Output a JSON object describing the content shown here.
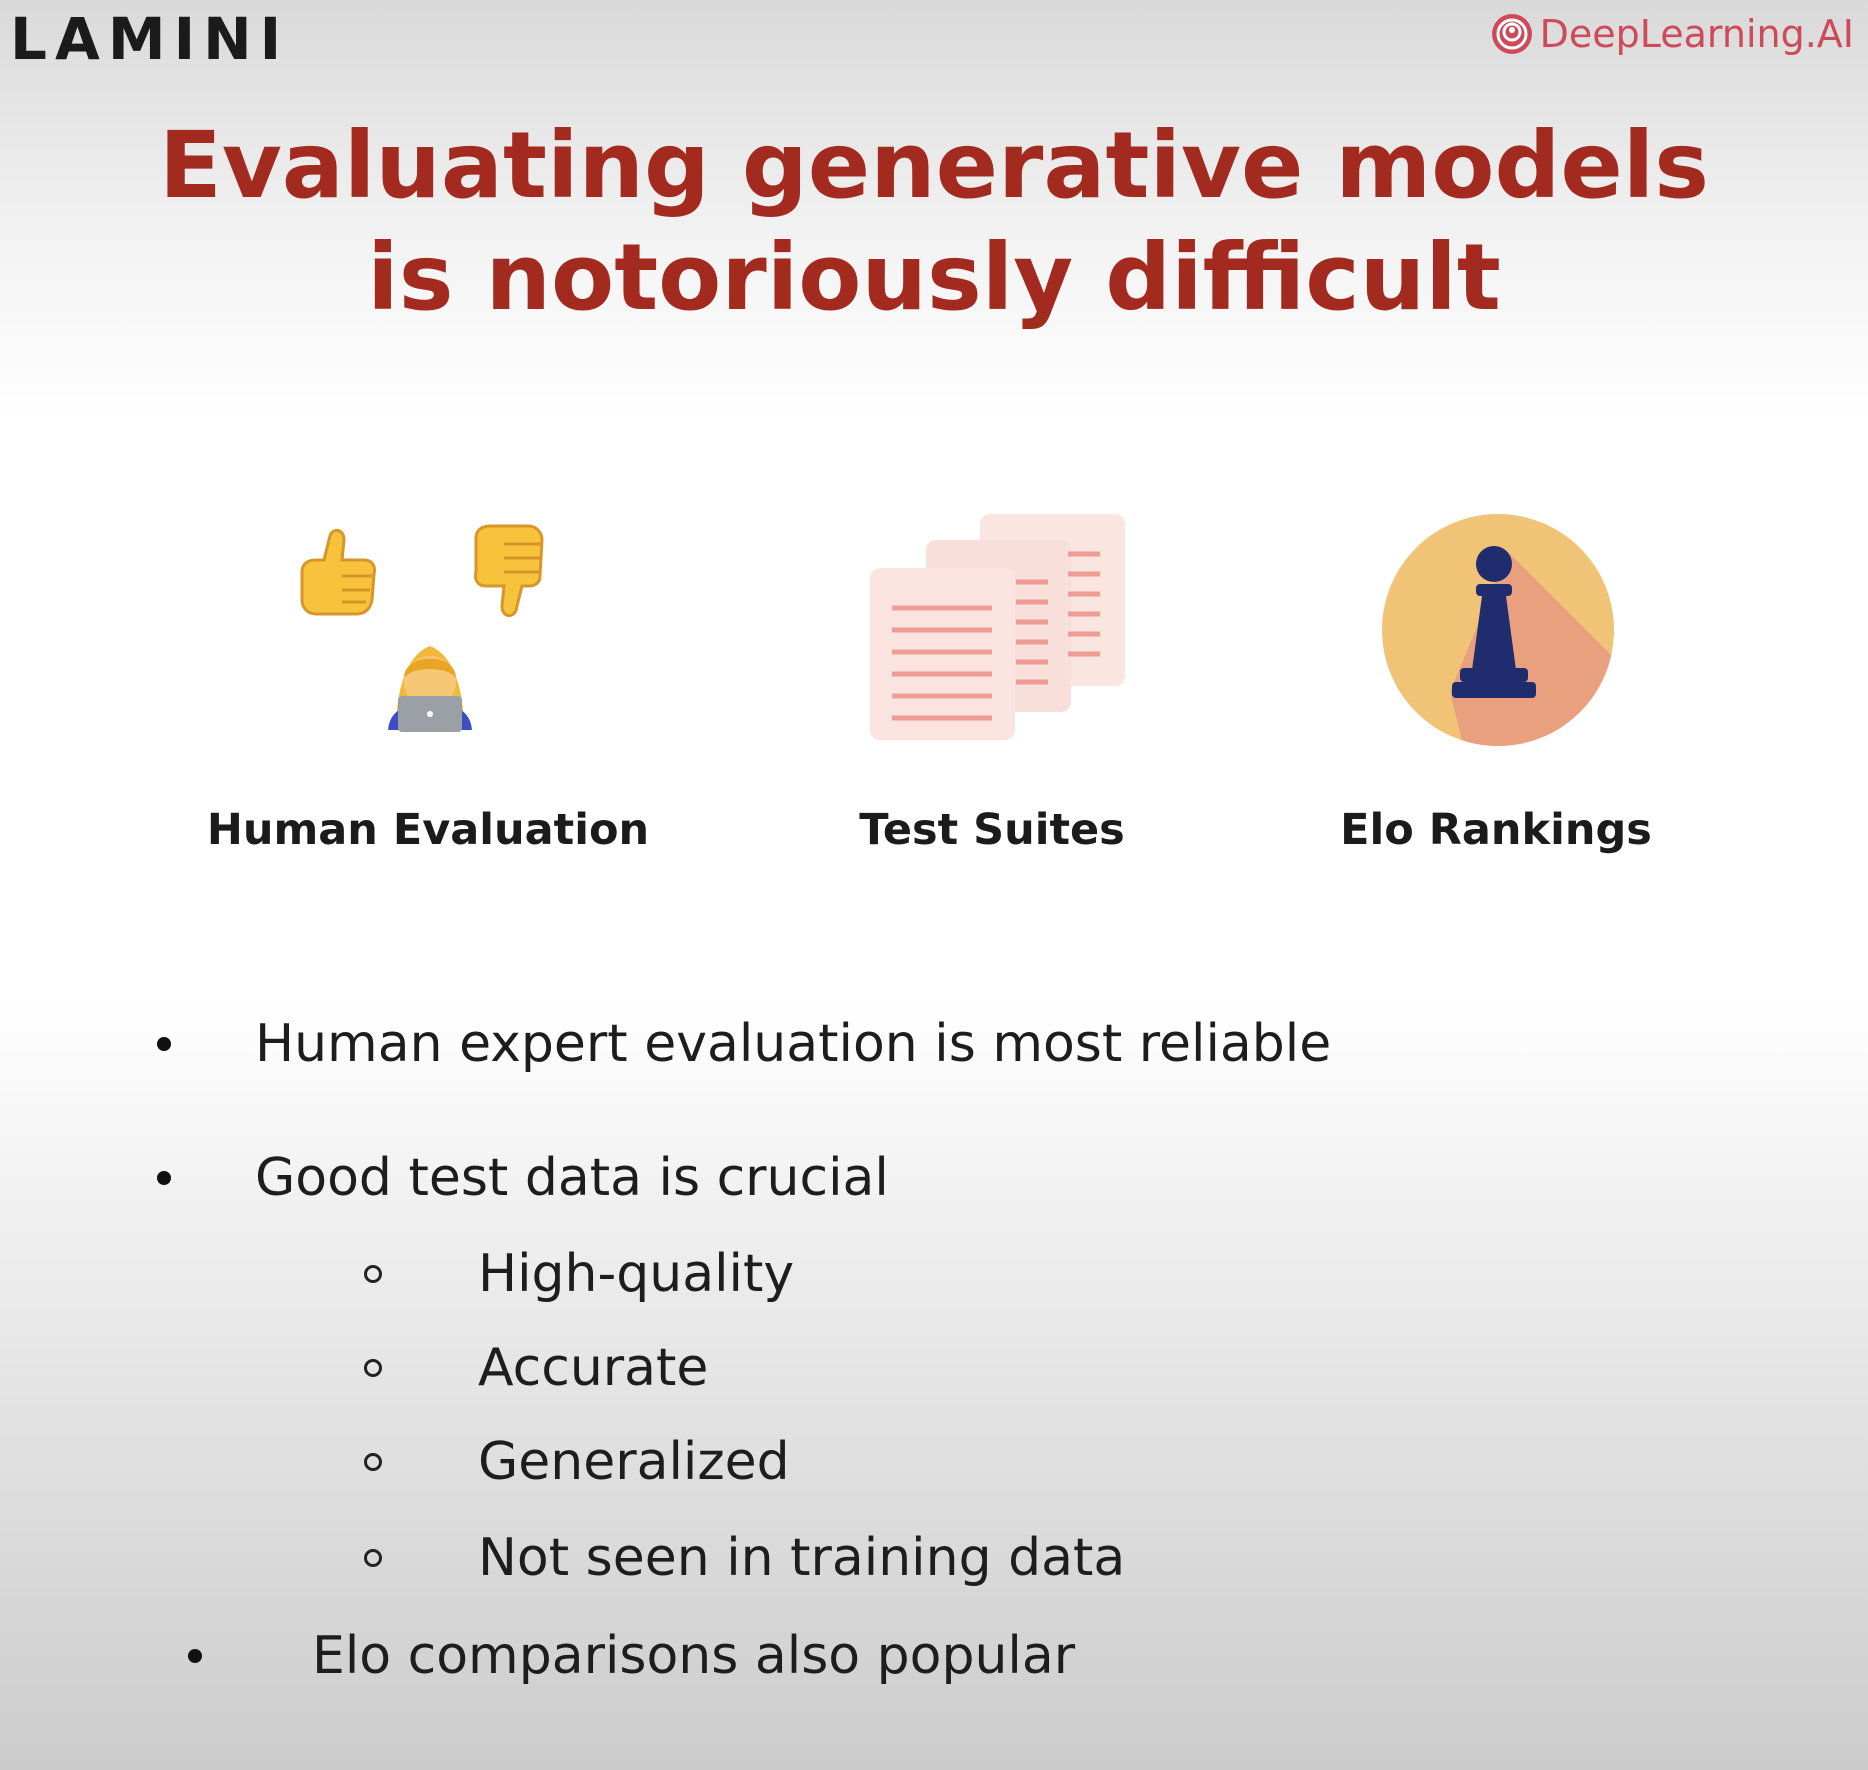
{
  "header": {
    "left_logo": "LAMINI",
    "right_logo": "DeepLearning.AI",
    "right_logo_icon": "deeplearning-swirl-icon",
    "brand_color": "#cf4a59"
  },
  "slide": {
    "title_line1": "Evaluating generative models",
    "title_line2": "is notoriously difficult",
    "title_color": "#a32a1f"
  },
  "methods": [
    {
      "label": "Human Evaluation",
      "icon": "thumbs-up-down-person-laptop-icon"
    },
    {
      "label": "Test Suites",
      "icon": "stacked-documents-icon"
    },
    {
      "label": "Elo Rankings",
      "icon": "chess-pawn-icon"
    }
  ],
  "bullets": {
    "b1": "Human expert evaluation is most reliable",
    "b2": "Good test data is crucial",
    "sub": [
      "High-quality",
      "Accurate",
      "Generalized",
      "Not seen in training data"
    ],
    "b3": "Elo comparisons also popular"
  }
}
